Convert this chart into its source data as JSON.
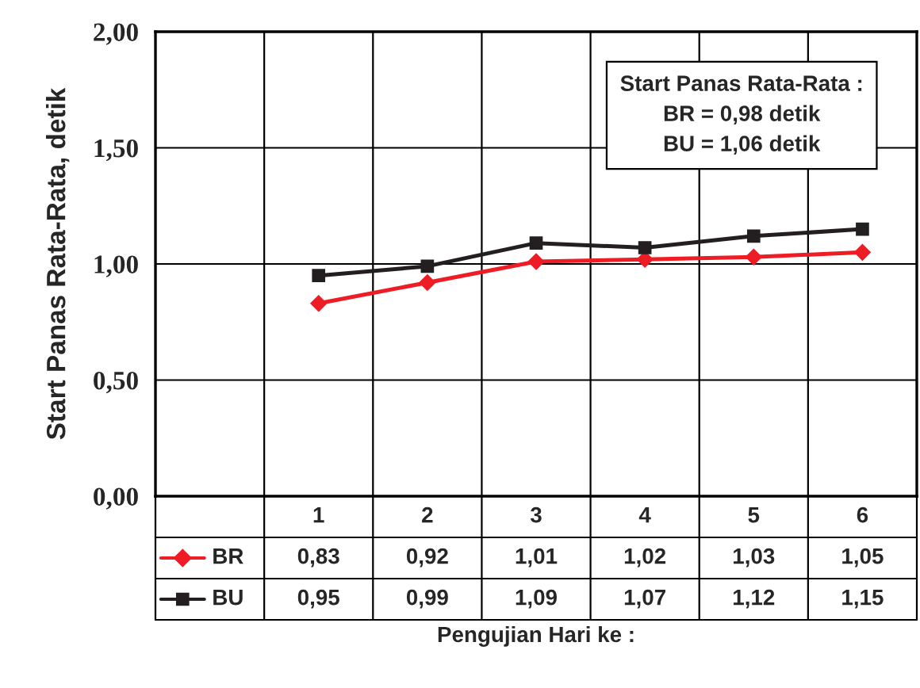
{
  "chart_data": {
    "type": "line",
    "categories": [
      null,
      "1",
      "2",
      "3",
      "4",
      "5",
      "6"
    ],
    "ylabel": "Start Panas Rata-Rata, detik",
    "xlabel": "Pengujian Hari ke :",
    "ylim": [
      0,
      2
    ],
    "yticks": [
      {
        "value": 0,
        "label": "0,00"
      },
      {
        "value": 0.5,
        "label": "0,50"
      },
      {
        "value": 1,
        "label": "1,00"
      },
      {
        "value": 1.5,
        "label": "1,50"
      },
      {
        "value": 2,
        "label": "2,00"
      }
    ],
    "grid": true,
    "legend": "bottom left",
    "line_style": "solid",
    "series": [
      {
        "name": "BR",
        "color": "#ee1c25",
        "marker": "diamond",
        "values": [
          null,
          0.83,
          0.92,
          1.01,
          1.02,
          1.03,
          1.05
        ],
        "value_labels": [
          null,
          "0,83",
          "0,92",
          "1,01",
          "1,02",
          "1,03",
          "1,05"
        ]
      },
      {
        "name": "BU",
        "color": "#231f20",
        "marker": "square",
        "values": [
          null,
          0.95,
          0.99,
          1.09,
          1.07,
          1.12,
          1.15
        ],
        "value_labels": [
          null,
          "0,95",
          "0,99",
          "1,09",
          "1,07",
          "1,12",
          "1,15"
        ]
      }
    ],
    "annotations": [
      "Start Panas Rata-Rata :\nBR = 0,98 detik\nBU = 1,06 detik"
    ]
  }
}
